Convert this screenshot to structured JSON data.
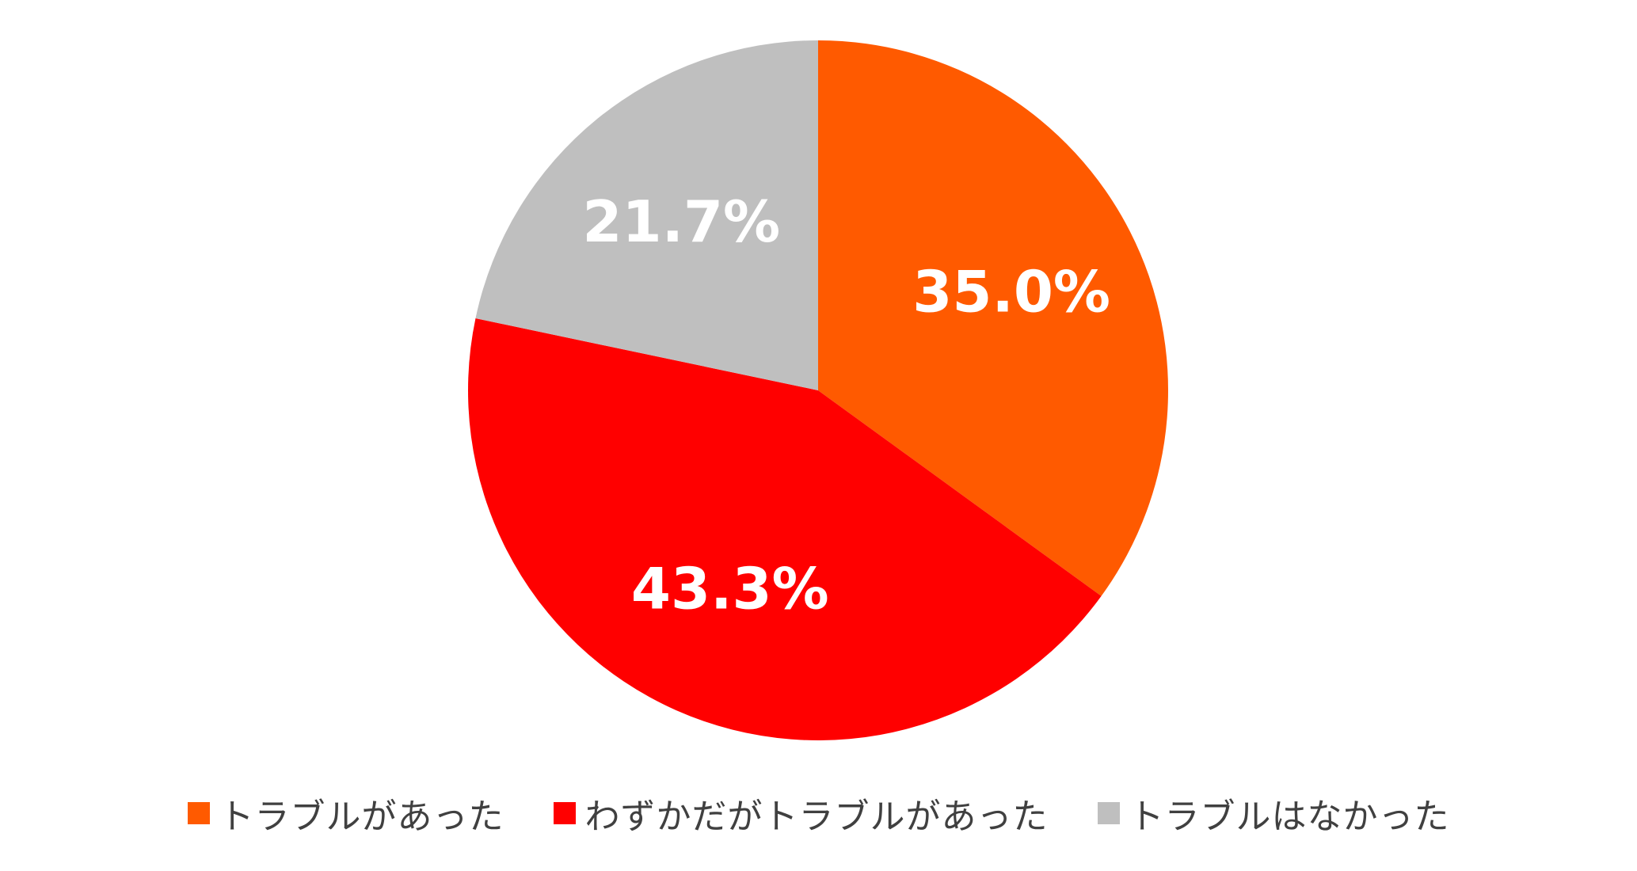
{
  "chart_data": {
    "type": "pie",
    "categories": [
      "トラブルがあった",
      "わずかだがトラブルがあった",
      "トラブルはなかった"
    ],
    "values": [
      35.0,
      43.3,
      21.7
    ],
    "labels": [
      "35.0%",
      "43.3%",
      "21.7%"
    ],
    "colors": [
      "#FF5A00",
      "#FF0000",
      "#BFBFBF"
    ],
    "start_angle_deg": 0,
    "direction": "clockwise",
    "legend_position": "bottom",
    "title": ""
  }
}
